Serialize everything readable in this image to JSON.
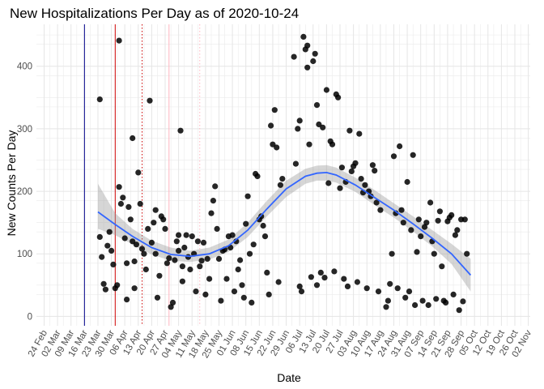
{
  "chart_data": {
    "type": "scatter",
    "title": "New Hospitalizations Per Day as of 2020-10-24",
    "xlabel": "Date",
    "ylabel": "New Counts Per Day",
    "xlim": [
      "2020-02-20",
      "2020-11-03"
    ],
    "ylim": [
      -15,
      467
    ],
    "grid": true,
    "yticks": [
      0,
      100,
      200,
      300,
      400
    ],
    "xticks": [
      "2020-02-24",
      "2020-03-02",
      "2020-03-09",
      "2020-03-16",
      "2020-03-23",
      "2020-03-30",
      "2020-04-06",
      "2020-04-13",
      "2020-04-20",
      "2020-04-27",
      "2020-05-04",
      "2020-05-11",
      "2020-05-18",
      "2020-05-25",
      "2020-06-01",
      "2020-06-08",
      "2020-06-15",
      "2020-06-22",
      "2020-06-29",
      "2020-07-06",
      "2020-07-13",
      "2020-07-20",
      "2020-07-27",
      "2020-08-03",
      "2020-08-10",
      "2020-08-17",
      "2020-08-24",
      "2020-08-31",
      "2020-09-07",
      "2020-09-14",
      "2020-09-21",
      "2020-09-28",
      "2020-10-05",
      "2020-10-12",
      "2020-10-19",
      "2020-10-26",
      "2020-11-02"
    ],
    "xtick_labels": [
      "24 Feb",
      "02 Mar",
      "09 Mar",
      "16 Mar",
      "23 Mar",
      "30 Mar",
      "06 Apr",
      "13 Apr",
      "20 Apr",
      "27 Apr",
      "04 May",
      "11 May",
      "18 May",
      "25 May",
      "01 Jun",
      "08 Jun",
      "15 Jun",
      "22 Jun",
      "29 Jun",
      "06 Jul",
      "13 Jul",
      "20 Jul",
      "27 Jul",
      "03 Aug",
      "10 Aug",
      "17 Aug",
      "24 Aug",
      "31 Aug",
      "07 Sep",
      "14 Sep",
      "21 Sep",
      "28 Sep",
      "05 Oct",
      "12 Oct",
      "19 Oct",
      "26 Oct",
      "02 Nov"
    ],
    "vlines": [
      {
        "date": "2020-03-16",
        "color": "#00008b",
        "style": "solid"
      },
      {
        "date": "2020-04-01",
        "color": "#cc0000",
        "style": "solid"
      },
      {
        "date": "2020-04-15",
        "color": "#cc0000",
        "style": "dotted"
      },
      {
        "date": "2020-04-29",
        "color": "#ffb6c1",
        "style": "solid"
      },
      {
        "date": "2020-05-15",
        "color": "#ffb6c1",
        "style": "dotted"
      }
    ],
    "points": [
      [
        "2020-03-24",
        347
      ],
      [
        "2020-03-24",
        127
      ],
      [
        "2020-03-25",
        95
      ],
      [
        "2020-03-26",
        52
      ],
      [
        "2020-03-27",
        43
      ],
      [
        "2020-03-28",
        113
      ],
      [
        "2020-03-29",
        135
      ],
      [
        "2020-03-30",
        105
      ],
      [
        "2020-03-31",
        83
      ],
      [
        "2020-04-01",
        45
      ],
      [
        "2020-04-02",
        50
      ],
      [
        "2020-04-03",
        441
      ],
      [
        "2020-04-03",
        207
      ],
      [
        "2020-04-04",
        180
      ],
      [
        "2020-04-05",
        190
      ],
      [
        "2020-04-06",
        125
      ],
      [
        "2020-04-07",
        27
      ],
      [
        "2020-04-07",
        85
      ],
      [
        "2020-04-08",
        175
      ],
      [
        "2020-04-09",
        155
      ],
      [
        "2020-04-10",
        285
      ],
      [
        "2020-04-10",
        120
      ],
      [
        "2020-04-11",
        88
      ],
      [
        "2020-04-11",
        45
      ],
      [
        "2020-04-12",
        115
      ],
      [
        "2020-04-13",
        230
      ],
      [
        "2020-04-14",
        180
      ],
      [
        "2020-04-15",
        108
      ],
      [
        "2020-04-16",
        100
      ],
      [
        "2020-04-17",
        75
      ],
      [
        "2020-04-18",
        140
      ],
      [
        "2020-04-19",
        345
      ],
      [
        "2020-04-20",
        118
      ],
      [
        "2020-04-21",
        150
      ],
      [
        "2020-04-22",
        170
      ],
      [
        "2020-04-22",
        100
      ],
      [
        "2020-04-23",
        30
      ],
      [
        "2020-04-24",
        65
      ],
      [
        "2020-04-25",
        160
      ],
      [
        "2020-04-26",
        155
      ],
      [
        "2020-04-27",
        140
      ],
      [
        "2020-04-28",
        85
      ],
      [
        "2020-04-29",
        93
      ],
      [
        "2020-04-30",
        15
      ],
      [
        "2020-05-01",
        22
      ],
      [
        "2020-05-02",
        90
      ],
      [
        "2020-05-03",
        120
      ],
      [
        "2020-05-04",
        105
      ],
      [
        "2020-05-04",
        130
      ],
      [
        "2020-05-05",
        297
      ],
      [
        "2020-05-06",
        56
      ],
      [
        "2020-05-06",
        80
      ],
      [
        "2020-05-07",
        110
      ],
      [
        "2020-05-08",
        130
      ],
      [
        "2020-05-09",
        95
      ],
      [
        "2020-05-10",
        75
      ],
      [
        "2020-05-11",
        128
      ],
      [
        "2020-05-12",
        100
      ],
      [
        "2020-05-13",
        40
      ],
      [
        "2020-05-14",
        120
      ],
      [
        "2020-05-15",
        80
      ],
      [
        "2020-05-16",
        89
      ],
      [
        "2020-05-17",
        118
      ],
      [
        "2020-05-18",
        35
      ],
      [
        "2020-05-19",
        92
      ],
      [
        "2020-05-20",
        60
      ],
      [
        "2020-05-21",
        165
      ],
      [
        "2020-05-22",
        185
      ],
      [
        "2020-05-23",
        208
      ],
      [
        "2020-05-24",
        140
      ],
      [
        "2020-05-25",
        92
      ],
      [
        "2020-05-26",
        25
      ],
      [
        "2020-05-27",
        105
      ],
      [
        "2020-05-28",
        107
      ],
      [
        "2020-05-29",
        60
      ],
      [
        "2020-05-30",
        128
      ],
      [
        "2020-05-31",
        110
      ],
      [
        "2020-06-01",
        130
      ],
      [
        "2020-06-02",
        40
      ],
      [
        "2020-06-03",
        120
      ],
      [
        "2020-06-04",
        75
      ],
      [
        "2020-06-05",
        90
      ],
      [
        "2020-06-06",
        50
      ],
      [
        "2020-06-07",
        30
      ],
      [
        "2020-06-08",
        148
      ],
      [
        "2020-06-09",
        192
      ],
      [
        "2020-06-10",
        100
      ],
      [
        "2020-06-11",
        22
      ],
      [
        "2020-06-12",
        115
      ],
      [
        "2020-06-13",
        228
      ],
      [
        "2020-06-14",
        224
      ],
      [
        "2020-06-15",
        155
      ],
      [
        "2020-06-16",
        160
      ],
      [
        "2020-06-17",
        145
      ],
      [
        "2020-06-18",
        128
      ],
      [
        "2020-06-19",
        70
      ],
      [
        "2020-06-20",
        35
      ],
      [
        "2020-06-21",
        305
      ],
      [
        "2020-06-22",
        275
      ],
      [
        "2020-06-23",
        330
      ],
      [
        "2020-06-24",
        270
      ],
      [
        "2020-06-25",
        55
      ],
      [
        "2020-06-26",
        210
      ],
      [
        "2020-06-27",
        220
      ],
      [
        "2020-07-03",
        415
      ],
      [
        "2020-07-04",
        244
      ],
      [
        "2020-07-05",
        300
      ],
      [
        "2020-07-06",
        313
      ],
      [
        "2020-07-06",
        48
      ],
      [
        "2020-07-07",
        40
      ],
      [
        "2020-07-08",
        447
      ],
      [
        "2020-07-09",
        427
      ],
      [
        "2020-07-10",
        433
      ],
      [
        "2020-07-10",
        398
      ],
      [
        "2020-07-11",
        275
      ],
      [
        "2020-07-12",
        63
      ],
      [
        "2020-07-13",
        408
      ],
      [
        "2020-07-14",
        420
      ],
      [
        "2020-07-15",
        338
      ],
      [
        "2020-07-15",
        50
      ],
      [
        "2020-07-16",
        307
      ],
      [
        "2020-07-17",
        70
      ],
      [
        "2020-07-18",
        302
      ],
      [
        "2020-07-19",
        62
      ],
      [
        "2020-07-20",
        362
      ],
      [
        "2020-07-21",
        213
      ],
      [
        "2020-07-22",
        280
      ],
      [
        "2020-07-23",
        275
      ],
      [
        "2020-07-24",
        72
      ],
      [
        "2020-07-25",
        355
      ],
      [
        "2020-07-26",
        350
      ],
      [
        "2020-07-27",
        205
      ],
      [
        "2020-07-28",
        238
      ],
      [
        "2020-07-29",
        60
      ],
      [
        "2020-07-30",
        215
      ],
      [
        "2020-07-31",
        48
      ],
      [
        "2020-08-01",
        297
      ],
      [
        "2020-08-02",
        232
      ],
      [
        "2020-08-03",
        240
      ],
      [
        "2020-08-04",
        245
      ],
      [
        "2020-08-05",
        55
      ],
      [
        "2020-08-06",
        292
      ],
      [
        "2020-08-07",
        220
      ],
      [
        "2020-08-08",
        198
      ],
      [
        "2020-08-09",
        210
      ],
      [
        "2020-08-10",
        45
      ],
      [
        "2020-08-11",
        200
      ],
      [
        "2020-08-12",
        192
      ],
      [
        "2020-08-13",
        242
      ],
      [
        "2020-08-14",
        233
      ],
      [
        "2020-08-15",
        182
      ],
      [
        "2020-08-16",
        40
      ],
      [
        "2020-08-17",
        170
      ],
      [
        "2020-08-20",
        15
      ],
      [
        "2020-08-21",
        25
      ],
      [
        "2020-08-22",
        52
      ],
      [
        "2020-08-23",
        100
      ],
      [
        "2020-08-24",
        256
      ],
      [
        "2020-08-25",
        165
      ],
      [
        "2020-08-26",
        45
      ],
      [
        "2020-08-27",
        272
      ],
      [
        "2020-08-28",
        170
      ],
      [
        "2020-08-29",
        150
      ],
      [
        "2020-08-30",
        30
      ],
      [
        "2020-08-31",
        215
      ],
      [
        "2020-09-01",
        40
      ],
      [
        "2020-09-02",
        138
      ],
      [
        "2020-09-03",
        258
      ],
      [
        "2020-09-04",
        18
      ],
      [
        "2020-09-05",
        103
      ],
      [
        "2020-09-06",
        155
      ],
      [
        "2020-09-07",
        128
      ],
      [
        "2020-09-08",
        25
      ],
      [
        "2020-09-09",
        143
      ],
      [
        "2020-09-10",
        150
      ],
      [
        "2020-09-11",
        18
      ],
      [
        "2020-09-12",
        182
      ],
      [
        "2020-09-13",
        120
      ],
      [
        "2020-09-14",
        100
      ],
      [
        "2020-09-15",
        28
      ],
      [
        "2020-09-16",
        153
      ],
      [
        "2020-09-17",
        168
      ],
      [
        "2020-09-18",
        80
      ],
      [
        "2020-09-19",
        25
      ],
      [
        "2020-09-20",
        22
      ],
      [
        "2020-09-21",
        152
      ],
      [
        "2020-09-22",
        158
      ],
      [
        "2020-09-23",
        162
      ],
      [
        "2020-09-24",
        35
      ],
      [
        "2020-09-25",
        130
      ],
      [
        "2020-09-26",
        138
      ],
      [
        "2020-09-27",
        10
      ],
      [
        "2020-09-28",
        155
      ],
      [
        "2020-09-29",
        24
      ],
      [
        "2020-09-30",
        155
      ],
      [
        "2020-10-01",
        100
      ]
    ],
    "smooth": [
      [
        "2020-03-23",
        167,
        140,
        212
      ],
      [
        "2020-04-01",
        147,
        130,
        165
      ],
      [
        "2020-04-10",
        128,
        115,
        140
      ],
      [
        "2020-04-20",
        110,
        99,
        121
      ],
      [
        "2020-04-30",
        99,
        89,
        110
      ],
      [
        "2020-05-10",
        96,
        87,
        105
      ],
      [
        "2020-05-20",
        100,
        91,
        110
      ],
      [
        "2020-05-30",
        113,
        103,
        123
      ],
      [
        "2020-06-09",
        138,
        127,
        150
      ],
      [
        "2020-06-19",
        172,
        160,
        185
      ],
      [
        "2020-06-29",
        204,
        191,
        217
      ],
      [
        "2020-07-09",
        224,
        212,
        236
      ],
      [
        "2020-07-15",
        229,
        217,
        241
      ],
      [
        "2020-07-20",
        230,
        217,
        242
      ],
      [
        "2020-07-25",
        226,
        214,
        238
      ],
      [
        "2020-08-04",
        210,
        199,
        222
      ],
      [
        "2020-08-14",
        190,
        178,
        202
      ],
      [
        "2020-08-24",
        170,
        158,
        181
      ],
      [
        "2020-09-03",
        148,
        136,
        160
      ],
      [
        "2020-09-13",
        125,
        112,
        138
      ],
      [
        "2020-09-23",
        100,
        84,
        116
      ],
      [
        "2020-10-03",
        66,
        40,
        92
      ]
    ]
  }
}
